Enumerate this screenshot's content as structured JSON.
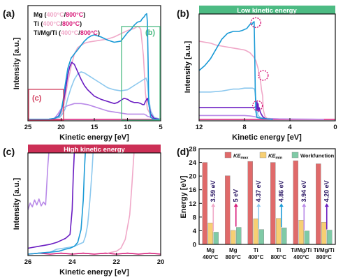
{
  "colors": {
    "mg400": "#f0a8c8",
    "mg800": "#d81b7a",
    "ti400": "#8cc8ee",
    "ti800": "#1a9ad6",
    "timgti400": "#b98ae8",
    "timgti800": "#6a1cc2",
    "banner_green": "#4cbb83",
    "banner_red": "#cc2f56",
    "box_red": "#d23f5e",
    "box_green": "#4cbb83",
    "bar_ke_max": "#e06a6a",
    "bar_ke_min": "#f7cf73",
    "bar_wf": "#7fcaa6"
  },
  "chart_data": [
    {
      "panel": "(a)",
      "type": "line",
      "xlabel": "Kinetic energy [eV]",
      "ylabel": "Intensity [a.u.]",
      "xlim": [
        25,
        5
      ],
      "xticks": [
        "25",
        "20",
        "15",
        "10",
        "5"
      ],
      "legend": {
        "placement": "top-left",
        "rows": [
          {
            "name": "Mg",
            "open": " (",
            "t1": "400°C",
            "sep": "/",
            "t2": "800°C",
            "close": ")"
          },
          {
            "name": "Ti",
            "open": " (",
            "t1": "400°C",
            "sep": "/",
            "t2": "800°C",
            "close": ")"
          },
          {
            "name": "Ti/Mg/Ti",
            "open": " (",
            "t1": "400°C",
            "sep": "/",
            "t2": "800°C",
            "close": ")"
          }
        ]
      },
      "inset_labels": {
        "c": "(c)",
        "b": "(b)"
      },
      "series": [
        {
          "key": "mg400",
          "x": [
            25,
            22,
            21,
            20.2,
            19.8,
            19.4,
            19,
            18.5,
            18,
            17.5,
            17,
            16.5,
            16,
            15,
            14,
            13,
            12,
            11,
            10,
            9,
            8.5,
            8.2,
            8,
            7.6,
            7.3,
            7,
            6.5,
            6,
            5.5,
            5
          ],
          "y": [
            0,
            0,
            0.01,
            0.02,
            0.08,
            0.2,
            0.35,
            0.5,
            0.62,
            0.68,
            0.7,
            0.72,
            0.73,
            0.74,
            0.75,
            0.76,
            0.78,
            0.81,
            0.84,
            0.86,
            0.88,
            0.87,
            0.85,
            0.6,
            0.25,
            0.1,
            0.04,
            0.02,
            0.01,
            0
          ]
        },
        {
          "key": "mg800",
          "x": [
            25,
            5
          ],
          "y": [
            0,
            0
          ]
        },
        {
          "key": "ti400",
          "x": [
            25,
            22,
            21,
            20.2,
            19.8,
            19.4,
            19,
            18.5,
            18,
            17.5,
            17,
            16.5,
            16,
            15,
            14,
            13,
            12,
            11,
            10,
            9.5,
            9,
            8.5,
            8,
            7.5,
            7.2,
            7,
            6.8,
            6.5,
            6,
            5
          ],
          "y": [
            0,
            0,
            0.01,
            0.02,
            0.05,
            0.1,
            0.2,
            0.3,
            0.38,
            0.43,
            0.45,
            0.44,
            0.42,
            0.38,
            0.34,
            0.3,
            0.28,
            0.27,
            0.28,
            0.3,
            0.32,
            0.34,
            0.36,
            0.38,
            0.39,
            0.35,
            0.2,
            0.08,
            0.02,
            0
          ]
        },
        {
          "key": "ti800",
          "x": [
            25,
            22,
            21,
            20.3,
            20,
            19.7,
            19.4,
            19,
            18.5,
            18,
            17.5,
            17,
            16.5,
            16,
            15.5,
            15,
            14,
            13,
            12,
            11,
            10.5,
            10,
            9.5,
            9,
            8.5,
            8,
            7.8,
            7.5,
            7.3,
            7.1,
            7,
            6.9,
            6.8,
            6.5,
            6,
            5
          ],
          "y": [
            0,
            0,
            0.01,
            0.03,
            0.08,
            0.18,
            0.32,
            0.48,
            0.58,
            0.62,
            0.66,
            0.7,
            0.74,
            0.77,
            0.79,
            0.8,
            0.78,
            0.75,
            0.73,
            0.74,
            0.78,
            0.82,
            0.85,
            0.89,
            0.92,
            0.93,
            0.95,
            0.97,
            0.99,
            1.0,
            0.92,
            0.55,
            0.15,
            0.02,
            0,
            0
          ]
        },
        {
          "key": "timgti400",
          "x": [
            25,
            22,
            21,
            20.5,
            20,
            19,
            18,
            17,
            16,
            15,
            14,
            13,
            12,
            11,
            10,
            9,
            8.5,
            8,
            7.5,
            7.2,
            7,
            6.5,
            6,
            5
          ],
          "y": [
            0,
            0,
            0.01,
            0.05,
            0.1,
            0.13,
            0.15,
            0.15,
            0.14,
            0.12,
            0.1,
            0.08,
            0.07,
            0.06,
            0.05,
            0.05,
            0.05,
            0.05,
            0.05,
            0.04,
            0.03,
            0.02,
            0.01,
            0
          ]
        },
        {
          "key": "timgti800",
          "x": [
            25,
            22,
            21,
            20.4,
            20,
            19.6,
            19.3,
            19,
            18.7,
            18.4,
            18,
            17.5,
            17,
            16.5,
            16,
            15,
            14,
            13,
            12.5,
            12,
            11.5,
            11,
            10.5,
            10,
            9.5,
            9,
            8.5,
            8,
            7.7,
            7.5,
            7.3,
            7,
            6.8,
            6.5,
            6,
            5
          ],
          "y": [
            0,
            0,
            0.01,
            0.03,
            0.08,
            0.18,
            0.3,
            0.42,
            0.5,
            0.54,
            0.52,
            0.45,
            0.38,
            0.32,
            0.28,
            0.22,
            0.19,
            0.17,
            0.16,
            0.15,
            0.16,
            0.18,
            0.2,
            0.19,
            0.17,
            0.16,
            0.16,
            0.15,
            0.14,
            0.14,
            0.17,
            0.2,
            0.15,
            0.05,
            0.01,
            0
          ]
        }
      ]
    },
    {
      "panel": "(b)",
      "type": "line",
      "banner": "Low kinetic energy",
      "xlabel": "Kinetic energy [eV]",
      "ylabel": "Intensity [a.u.]",
      "xlim": [
        12,
        0
      ],
      "xticks": [
        "12",
        "8",
        "4",
        "0"
      ],
      "series": [
        {
          "key": "mg400",
          "x": [
            12,
            11.5,
            11,
            10.5,
            10,
            9.5,
            9,
            8.5,
            8,
            7.8,
            7.5,
            7.2,
            7,
            6.8,
            6.6,
            6.5,
            6.4,
            6.35,
            6.2,
            6,
            5.5
          ],
          "y": [
            0.8,
            0.79,
            0.78,
            0.76,
            0.75,
            0.74,
            0.73,
            0.72,
            0.71,
            0.7,
            0.68,
            0.64,
            0.6,
            0.52,
            0.4,
            0.3,
            0.24,
            0.1,
            0.03,
            0.01,
            0
          ]
        },
        {
          "key": "mg800",
          "x": [
            12,
            0
          ],
          "y": [
            0,
            0
          ]
        },
        {
          "key": "ti400",
          "x": [
            12,
            11,
            10,
            9.5,
            9,
            8.5,
            8,
            7.6,
            7.3,
            7.1,
            7,
            6.9,
            6.8,
            6.6,
            6.2,
            5.5
          ],
          "y": [
            0.28,
            0.28,
            0.29,
            0.3,
            0.31,
            0.31,
            0.32,
            0.32,
            0.32,
            0.31,
            0.2,
            0.08,
            0.04,
            0.02,
            0.01,
            0
          ]
        },
        {
          "key": "ti800",
          "x": [
            12,
            11.5,
            11,
            10.5,
            10,
            9.5,
            9,
            8.5,
            8.2,
            8,
            7.8,
            7.6,
            7.45,
            7.35,
            7.25,
            7.15,
            7.1,
            7.05,
            7.0,
            6.9,
            6.5,
            5.5
          ],
          "y": [
            0.5,
            0.55,
            0.62,
            0.72,
            0.82,
            0.88,
            0.9,
            0.9,
            0.91,
            0.92,
            0.93,
            0.96,
            0.98,
            0.97,
            0.99,
            1.0,
            0.7,
            0.3,
            0.08,
            0.02,
            0.01,
            0
          ]
        },
        {
          "key": "timgti400",
          "x": [
            12,
            11,
            10,
            9,
            8,
            7.5,
            7.2,
            7.0,
            6.9,
            6.8,
            6.6,
            6.3,
            6.0,
            5.5,
            5,
            4,
            3,
            2,
            1
          ],
          "y": [
            0.04,
            0.04,
            0.04,
            0.04,
            0.04,
            0.035,
            0.03,
            0.025,
            0.02,
            0.018,
            0.015,
            0.012,
            0.01,
            0.008,
            0.006,
            0.004,
            0.003,
            0.002,
            0.001
          ]
        },
        {
          "key": "timgti800",
          "x": [
            12,
            11,
            10,
            9.5,
            9,
            8.5,
            8,
            7.6,
            7.4,
            7.2,
            7.0,
            6.95,
            6.9,
            6.85,
            6.8,
            6.75,
            6.7,
            6.6,
            6.4,
            6.2,
            6,
            5.5
          ],
          "y": [
            0.12,
            0.12,
            0.12,
            0.12,
            0.12,
            0.12,
            0.12,
            0.12,
            0.12,
            0.12,
            0.13,
            0.1,
            0.18,
            0.1,
            0.16,
            0.08,
            0.12,
            0.07,
            0.03,
            0.01,
            0.005,
            0
          ]
        }
      ],
      "circles": [
        {
          "x": 7.0,
          "y": 0.99
        },
        {
          "x": 6.35,
          "y": 0.45
        },
        {
          "x": 6.85,
          "y": 0.14
        }
      ]
    },
    {
      "panel": "(c)",
      "type": "line",
      "banner": "High kinetic energy",
      "xlabel": "Kinetic energy [eV]",
      "ylabel": "Intensity [a.u.]",
      "xlim": [
        26,
        20
      ],
      "xticks": [
        "26",
        "24",
        "22",
        "20"
      ],
      "series": [
        {
          "key": "mg400",
          "x": [
            22.4,
            22.2,
            22.0,
            21.8,
            21.6,
            21.4,
            21.3,
            21.2
          ],
          "y": [
            0.01,
            0.02,
            0.03,
            0.06,
            0.15,
            0.4,
            0.7,
            1.05
          ]
        },
        {
          "key": "mg800",
          "x": [
            26,
            25.5,
            25,
            24.5,
            24,
            23.5,
            23,
            22.5,
            22,
            21.5,
            21,
            20.5,
            20
          ],
          "y": [
            0.0,
            0.01,
            0.0,
            0.01,
            0.0,
            0.01,
            0.0,
            0.01,
            0.0,
            0.01,
            0.0,
            0.01,
            0.0
          ]
        },
        {
          "key": "ti400",
          "x": [
            26,
            25.5,
            25,
            24.7,
            24.4,
            24.1,
            23.9,
            23.7,
            23.5,
            23.4,
            23.3,
            23.2,
            23.1,
            23.05
          ],
          "y": [
            0.0,
            0.01,
            0.02,
            0.05,
            0.06,
            0.07,
            0.08,
            0.1,
            0.12,
            0.18,
            0.3,
            0.55,
            0.85,
            1.05
          ]
        },
        {
          "key": "ti800",
          "x": [
            26,
            25.5,
            25,
            24.6,
            24.3,
            24.1,
            23.9,
            23.75,
            23.6,
            23.5,
            23.45,
            23.4
          ],
          "y": [
            0.0,
            0.01,
            0.02,
            0.03,
            0.05,
            0.06,
            0.08,
            0.12,
            0.25,
            0.55,
            0.85,
            1.05
          ]
        },
        {
          "key": "timgti400",
          "x": [
            26,
            25.9,
            25.8,
            25.7,
            25.6,
            25.5,
            25.4,
            25.3,
            25.2,
            25.15,
            25.1,
            25.05
          ],
          "y": [
            0.45,
            0.52,
            0.48,
            0.55,
            0.5,
            0.56,
            0.49,
            0.53,
            0.5,
            0.7,
            0.9,
            1.05
          ]
        },
        {
          "key": "timgti800",
          "x": [
            26,
            25.5,
            25,
            24.7,
            24.5,
            24.3,
            24.1,
            24.0,
            23.95,
            23.9
          ],
          "y": [
            0.06,
            0.08,
            0.1,
            0.12,
            0.14,
            0.16,
            0.2,
            0.45,
            0.8,
            1.05
          ]
        }
      ]
    },
    {
      "panel": "(d)",
      "type": "bar",
      "ylabel": "Energy [eV]",
      "ylim": [
        0,
        28
      ],
      "yticks": [
        "0",
        "4",
        "8",
        "12",
        "16",
        "20",
        "24",
        "28"
      ],
      "legend": {
        "placement": "top",
        "entries": [
          {
            "key": "bar_ke_max",
            "name": "KE",
            "sub": "max"
          },
          {
            "key": "bar_ke_min",
            "name": "KE",
            "sub": "min"
          },
          {
            "key": "bar_wf",
            "name": "Workfunction",
            "sub": ""
          }
        ]
      },
      "categories": [
        {
          "top": "Mg",
          "bottom": "400°C"
        },
        {
          "top": "Mg",
          "bottom": "800°C"
        },
        {
          "top": "Ti",
          "bottom": "400°C"
        },
        {
          "top": "Ti",
          "bottom": "800°C"
        },
        {
          "top": "Ti/Mg/Ti",
          "bottom": "400°C"
        },
        {
          "top": "Ti/Mg/Ti",
          "bottom": "800°C"
        }
      ],
      "series": [
        {
          "key": "bar_ke_max",
          "values": [
            24.0,
            20.1,
            24.3,
            24.0,
            24.5,
            23.6
          ]
        },
        {
          "key": "bar_ke_min",
          "values": [
            6.3,
            4.1,
            7.5,
            7.6,
            7.1,
            6.5
          ]
        },
        {
          "key": "bar_wf",
          "values": [
            3.59,
            5.0,
            4.37,
            4.86,
            3.94,
            4.2
          ]
        }
      ],
      "annotations": [
        {
          "text": "3.59 eV",
          "key": "mg400"
        },
        {
          "text": "5 eV",
          "key": "mg800"
        },
        {
          "text": "4.37 eV",
          "key": "ti400"
        },
        {
          "text": "4.86 eV",
          "key": "ti800"
        },
        {
          "text": "3.94 eV",
          "key": "timgti400"
        },
        {
          "text": "4.20 eV",
          "key": "timgti800"
        }
      ]
    }
  ]
}
